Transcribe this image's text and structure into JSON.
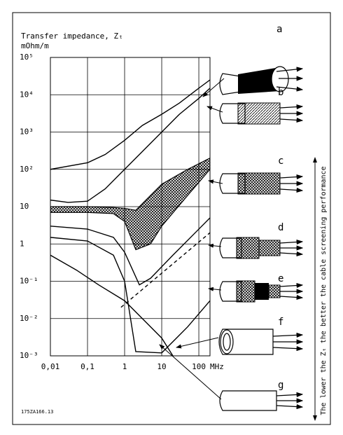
{
  "chart_data": {
    "type": "line",
    "title": "Transfer impedance, Zₜ",
    "y_unit": "mOhm/m",
    "x_unit": "MHz",
    "xlog": true,
    "ylog": true,
    "grid": true,
    "xlim": [
      0.01,
      200
    ],
    "ylim": [
      0.001,
      100000
    ],
    "xticks": [
      {
        "value": 0.01,
        "label": "0,01"
      },
      {
        "value": 0.1,
        "label": "0,1"
      },
      1,
      10,
      100
    ],
    "yticks": [
      {
        "value": 0.001,
        "label": "10⁻³"
      },
      {
        "value": 0.01,
        "label": "10⁻²"
      },
      {
        "value": 0.1,
        "label": "10⁻¹"
      },
      1,
      10,
      {
        "value": 100,
        "label": "10²"
      },
      {
        "value": 1000,
        "label": "10³"
      },
      {
        "value": 10000,
        "label": "10⁴"
      },
      {
        "value": 100000,
        "label": "10⁵"
      }
    ],
    "series": [
      {
        "name": "a",
        "color": "#000000",
        "x": [
          0.01,
          0.1,
          0.3,
          1,
          3,
          10,
          30,
          100,
          200
        ],
        "values": [
          100,
          150,
          250,
          600,
          1500,
          3000,
          6000,
          15000,
          25000
        ]
      },
      {
        "name": "b",
        "color": "#000000",
        "x": [
          0.01,
          0.03,
          0.1,
          0.3,
          1,
          3,
          10,
          30,
          100,
          200
        ],
        "values": [
          15,
          13,
          14,
          30,
          100,
          300,
          1000,
          3000,
          8000,
          15000
        ]
      },
      {
        "name": "c",
        "color": "#000000",
        "fill": "crosshatch",
        "x": [
          0.01,
          0.1,
          0.5,
          1,
          2,
          5,
          10,
          50,
          200
        ],
        "values": [
          10,
          10,
          9.5,
          9,
          8,
          20,
          40,
          100,
          200
        ],
        "lower": [
          7,
          7,
          6.5,
          4,
          0.7,
          1,
          3,
          20,
          100
        ]
      },
      {
        "name": "d",
        "color": "#000000",
        "x": [
          0.01,
          0.1,
          0.5,
          1,
          2.5,
          5,
          20,
          100,
          200
        ],
        "values": [
          3,
          2.5,
          1.5,
          0.6,
          0.08,
          0.12,
          0.5,
          2.5,
          5
        ]
      },
      {
        "name": "e",
        "color": "#000000",
        "dash": true,
        "x": [
          0.8,
          200
        ],
        "values": [
          0.02,
          2
        ]
      },
      {
        "name": "f",
        "color": "#000000",
        "x": [
          0.01,
          0.1,
          0.5,
          1,
          2,
          10,
          50,
          200
        ],
        "values": [
          1.5,
          1.2,
          0.5,
          0.1,
          0.0013,
          0.0012,
          0.006,
          0.03
        ]
      },
      {
        "name": "g",
        "color": "#000000",
        "x": [
          0.01,
          0.05,
          0.2,
          1,
          3,
          10,
          20
        ],
        "values": [
          0.5,
          0.2,
          0.08,
          0.03,
          0.01,
          0.003,
          0.001
        ]
      }
    ],
    "side_note": "The lower the Zₜ the better the cable screening performance",
    "code": "175ZA166.13"
  }
}
